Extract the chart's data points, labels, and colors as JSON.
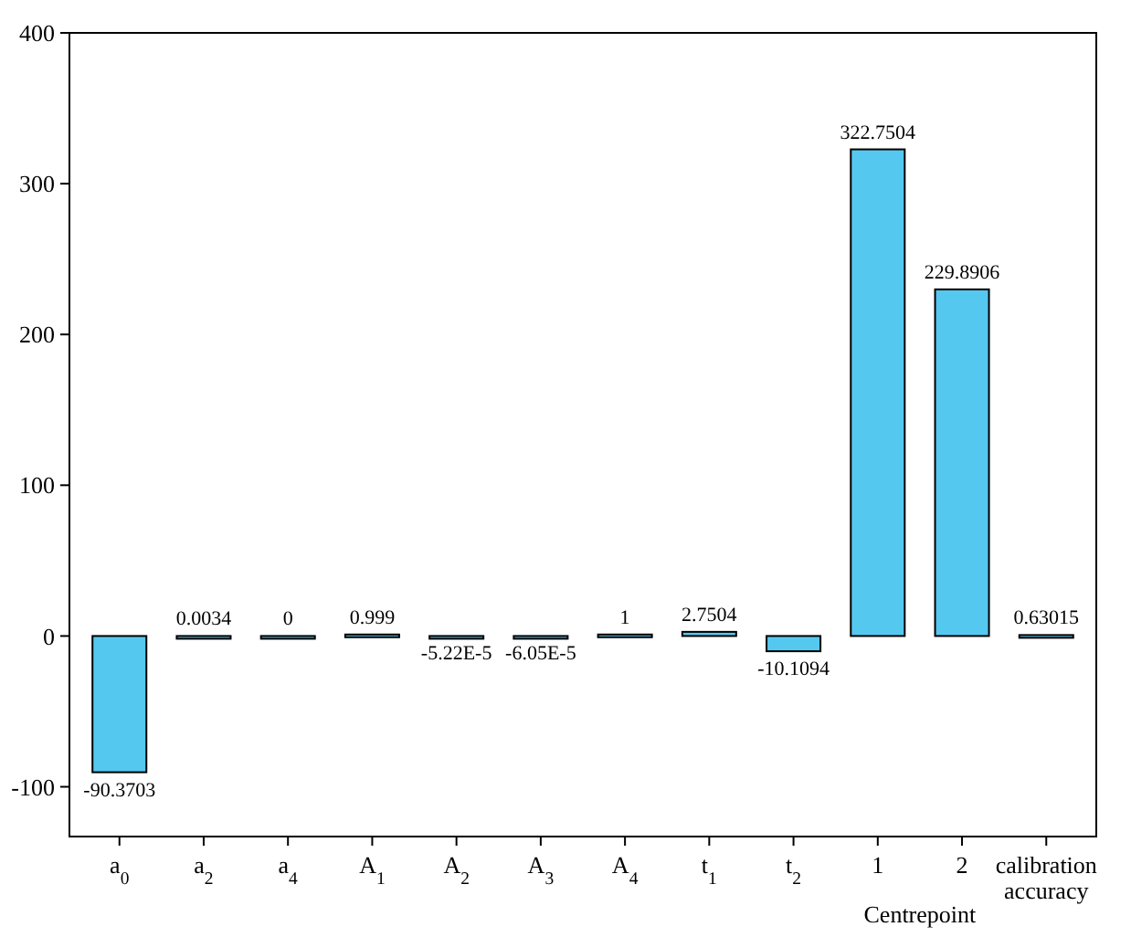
{
  "chart_data": {
    "type": "bar",
    "categories": [
      "a$_{0}$",
      "a$_{2}$",
      "a$_{4}$",
      "A$_{1}$",
      "A$_{2}$",
      "A$_{3}$",
      "A$_{4}$",
      "t$_{1}$",
      "t$_{2}$",
      "1",
      "2",
      "calibration accuracy"
    ],
    "values": [
      -90.3703,
      0.0034,
      0,
      0.999,
      -5.22e-05,
      -6.05e-05,
      1,
      2.7504,
      -10.1094,
      322.7504,
      229.8906,
      0.63015
    ],
    "value_labels": [
      "-90.3703",
      "0.0034",
      "0",
      "0.999",
      "-5.22E-5",
      "-6.05E-5",
      "1",
      "2.7504",
      "-10.1094",
      "322.7504",
      "229.8906",
      "0.63015"
    ],
    "color": "#55c8f0",
    "ylim": [
      -133,
      400
    ],
    "yticks": [
      -100,
      0,
      100,
      200,
      300,
      400
    ],
    "grid": false,
    "annotations": [
      "Centrepoint"
    ]
  }
}
